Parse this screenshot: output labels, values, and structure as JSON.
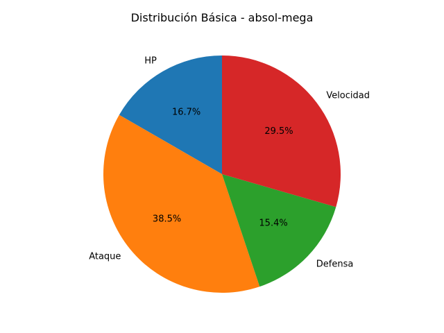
{
  "chart_data": {
    "type": "pie",
    "title": "Distribución Básica - absol-mega",
    "categories": [
      "HP",
      "Ataque",
      "Defensa",
      "Velocidad"
    ],
    "values": [
      16.7,
      38.5,
      15.4,
      29.5
    ],
    "value_labels": [
      "16.7%",
      "38.5%",
      "15.4%",
      "29.5%"
    ],
    "colors": [
      "#1f77b4",
      "#ff7f0e",
      "#2ca02c",
      "#d62728"
    ],
    "start_angle_deg": 90,
    "direction": "counterclockwise",
    "legend": "none"
  }
}
